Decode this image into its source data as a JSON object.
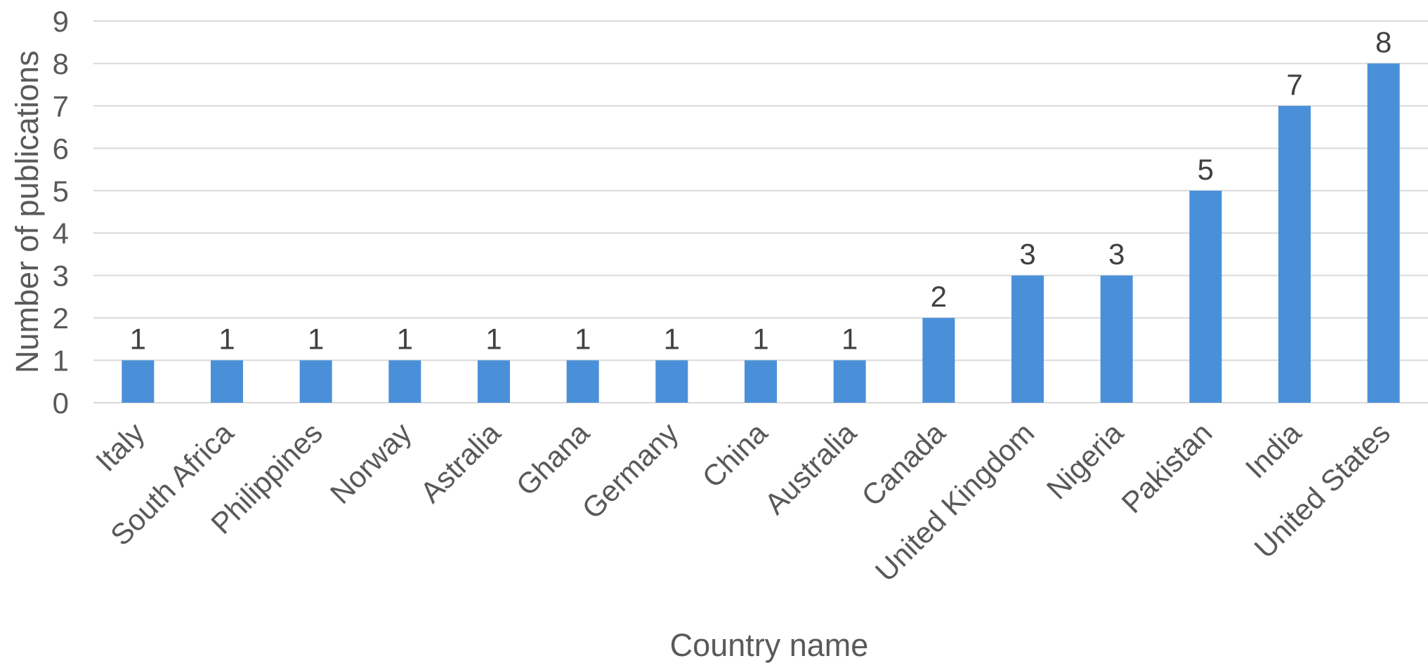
{
  "chart_data": {
    "type": "bar",
    "title": "",
    "xlabel": "Country name",
    "ylabel": "Number of publications",
    "categories": [
      "Italy",
      "South Africa",
      "Philippines",
      "Norway",
      "Astralia",
      "Ghana",
      "Germany",
      "China",
      "Australia",
      "Canada",
      "United Kingdom",
      "Nigeria",
      "Pakistan",
      "India",
      "United States"
    ],
    "values": [
      1,
      1,
      1,
      1,
      1,
      1,
      1,
      1,
      1,
      2,
      3,
      3,
      5,
      7,
      8
    ],
    "ylim": [
      0,
      9
    ],
    "yticks": [
      0,
      1,
      2,
      3,
      4,
      5,
      6,
      7,
      8,
      9
    ],
    "grid": true,
    "legend": "none",
    "data_labels": true,
    "bar_color": "#4a90d9"
  }
}
